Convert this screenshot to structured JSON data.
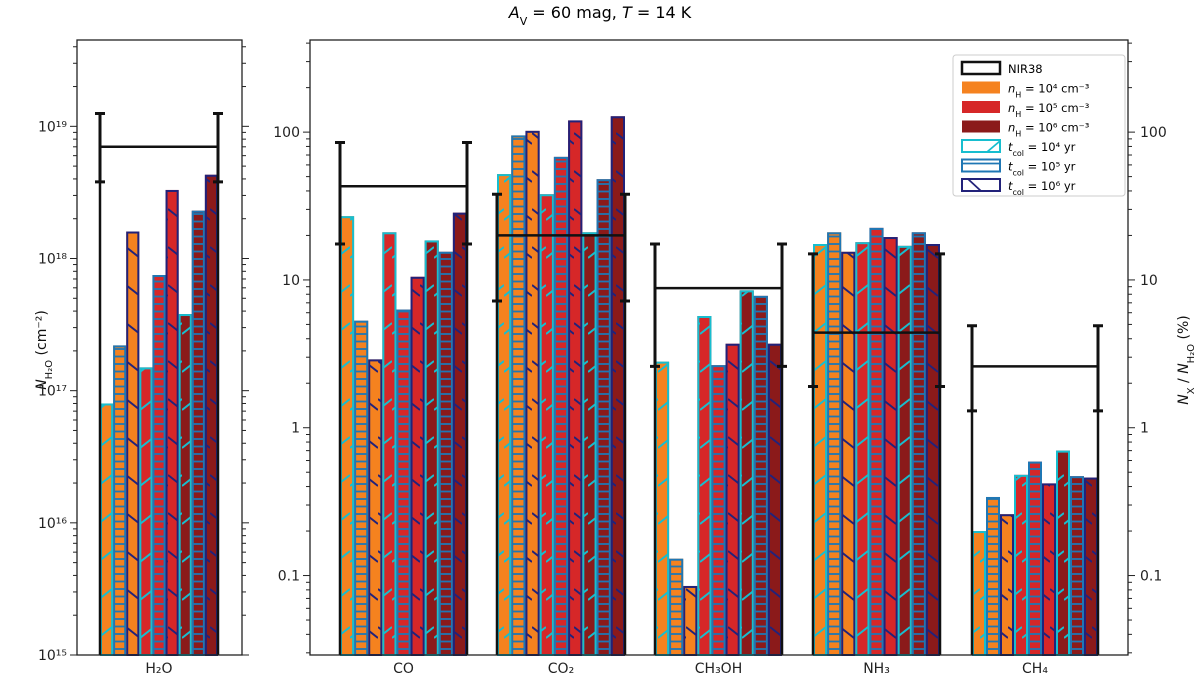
{
  "chart_data": [
    {
      "type": "bar",
      "panel": "left",
      "title_parts": {
        "a": "A",
        "a_sub": "V",
        "mid": " = 60 mag,  ",
        "t": "T",
        "end": " = 14 K"
      },
      "ylabel": {
        "n": "N",
        "sub": "H₂O",
        "unit": "  (cm⁻²)"
      },
      "yscale": "log",
      "ylim": [
        1000000000000000.0,
        4.5e+19
      ],
      "yticks": [
        {
          "v": 1000000000000000.0,
          "label": "10¹⁵"
        },
        {
          "v": 1e+16,
          "label": "10¹⁶"
        },
        {
          "v": 1e+17,
          "label": "10¹⁷"
        },
        {
          "v": 1e+18,
          "label": "10¹⁸"
        },
        {
          "v": 1e+19,
          "label": "10¹⁹"
        }
      ],
      "categories": [
        "H₂O"
      ],
      "nir38": [
        {
          "value": 7e+18,
          "err_low": 3.8e+18,
          "err_high": 1.25e+19
        }
      ],
      "series": [
        {
          "name": "nH=1e4, tcol=1e4",
          "density": 0,
          "time": 0,
          "values": [
            8e+16
          ]
        },
        {
          "name": "nH=1e4, tcol=1e5",
          "density": 0,
          "time": 1,
          "values": [
            2.2e+17
          ]
        },
        {
          "name": "nH=1e4, tcol=1e6",
          "density": 0,
          "time": 2,
          "values": [
            1.6e+18
          ]
        },
        {
          "name": "nH=1e5, tcol=1e4",
          "density": 1,
          "time": 0,
          "values": [
            1.5e+17
          ]
        },
        {
          "name": "nH=1e5, tcol=1e5",
          "density": 1,
          "time": 1,
          "values": [
            7.5e+17
          ]
        },
        {
          "name": "nH=1e5, tcol=1e6",
          "density": 1,
          "time": 2,
          "values": [
            3.3e+18
          ]
        },
        {
          "name": "nH=1e6, tcol=1e4",
          "density": 2,
          "time": 0,
          "values": [
            3.8e+17
          ]
        },
        {
          "name": "nH=1e6, tcol=1e5",
          "density": 2,
          "time": 1,
          "values": [
            2.3e+18
          ]
        },
        {
          "name": "nH=1e6, tcol=1e6",
          "density": 2,
          "time": 2,
          "values": [
            4.3e+18
          ]
        }
      ]
    },
    {
      "type": "bar",
      "panel": "right",
      "ylabel": {
        "n": "N",
        "sub1": "X",
        "sep": " / ",
        "n2": "N",
        "sub2": "H₂O",
        "unit": "  (%)"
      },
      "yscale": "log",
      "ylim": [
        0.029,
        420
      ],
      "yticks": [
        {
          "v": 0.1,
          "label": "0.1"
        },
        {
          "v": 1,
          "label": "1"
        },
        {
          "v": 10,
          "label": "10"
        },
        {
          "v": 100,
          "label": "100"
        }
      ],
      "categories": [
        "CO",
        "CO₂",
        "CH₃OH",
        "NH₃",
        "CH₄"
      ],
      "nir38": [
        {
          "value": 43,
          "err_low": 17.5,
          "err_high": 85
        },
        {
          "value": 20,
          "err_low": 7.2,
          "err_high": 38
        },
        {
          "value": 8.8,
          "err_low": 2.6,
          "err_high": 17.5
        },
        {
          "value": 4.4,
          "err_low": 1.9,
          "err_high": 15
        },
        {
          "value": 2.6,
          "err_low": 1.3,
          "err_high": 4.9
        }
      ],
      "series": [
        {
          "name": "nH=1e4, tcol=1e4",
          "density": 0,
          "time": 0,
          "values": [
            27,
            52,
            2.8,
            17.5,
            0.2
          ]
        },
        {
          "name": "nH=1e4, tcol=1e5",
          "density": 0,
          "time": 1,
          "values": [
            5.3,
            95,
            0.13,
            21,
            0.34
          ]
        },
        {
          "name": "nH=1e4, tcol=1e6",
          "density": 0,
          "time": 2,
          "values": [
            2.9,
            102,
            0.085,
            15.5,
            0.26
          ]
        },
        {
          "name": "nH=1e5, tcol=1e4",
          "density": 1,
          "time": 0,
          "values": [
            21,
            38,
            5.7,
            18,
            0.48
          ]
        },
        {
          "name": "nH=1e5, tcol=1e5",
          "density": 1,
          "time": 1,
          "values": [
            6.3,
            68,
            2.65,
            22.5,
            0.59
          ]
        },
        {
          "name": "nH=1e5, tcol=1e6",
          "density": 1,
          "time": 2,
          "values": [
            10.5,
            120,
            3.7,
            19.5,
            0.42
          ]
        },
        {
          "name": "nH=1e6, tcol=1e4",
          "density": 2,
          "time": 0,
          "values": [
            18.5,
            21,
            8.5,
            17,
            0.7
          ]
        },
        {
          "name": "nH=1e6, tcol=1e5",
          "density": 2,
          "time": 1,
          "values": [
            15.5,
            48,
            7.8,
            21,
            0.47
          ]
        },
        {
          "name": "nH=1e6, tcol=1e6",
          "density": 2,
          "time": 2,
          "values": [
            28.5,
            128,
            3.7,
            17.5,
            0.46
          ]
        }
      ]
    }
  ],
  "legend": {
    "placement": "top-right",
    "items": [
      {
        "kind": "nir",
        "label": "NIR38"
      },
      {
        "kind": "d0",
        "pre": "n",
        "sub": "H",
        "text": " = 10⁴ cm⁻³"
      },
      {
        "kind": "d1",
        "pre": "n",
        "sub": "H",
        "text": " = 10⁵ cm⁻³"
      },
      {
        "kind": "d2",
        "pre": "n",
        "sub": "H",
        "text": " = 10⁶ cm⁻³"
      },
      {
        "kind": "t0",
        "pre": "t",
        "sub": "col",
        "text": " = 10⁴ yr"
      },
      {
        "kind": "t1",
        "pre": "t",
        "sub": "col",
        "text": " = 10⁵ yr"
      },
      {
        "kind": "t2",
        "pre": "t",
        "sub": "col",
        "text": " = 10⁶ yr"
      }
    ]
  },
  "colors": {
    "density": [
      "#f5821f",
      "#d62728",
      "#8b1a1a"
    ],
    "edge": [
      "#17becf",
      "#1f77b4",
      "#22227a"
    ],
    "nir": "#111111"
  }
}
